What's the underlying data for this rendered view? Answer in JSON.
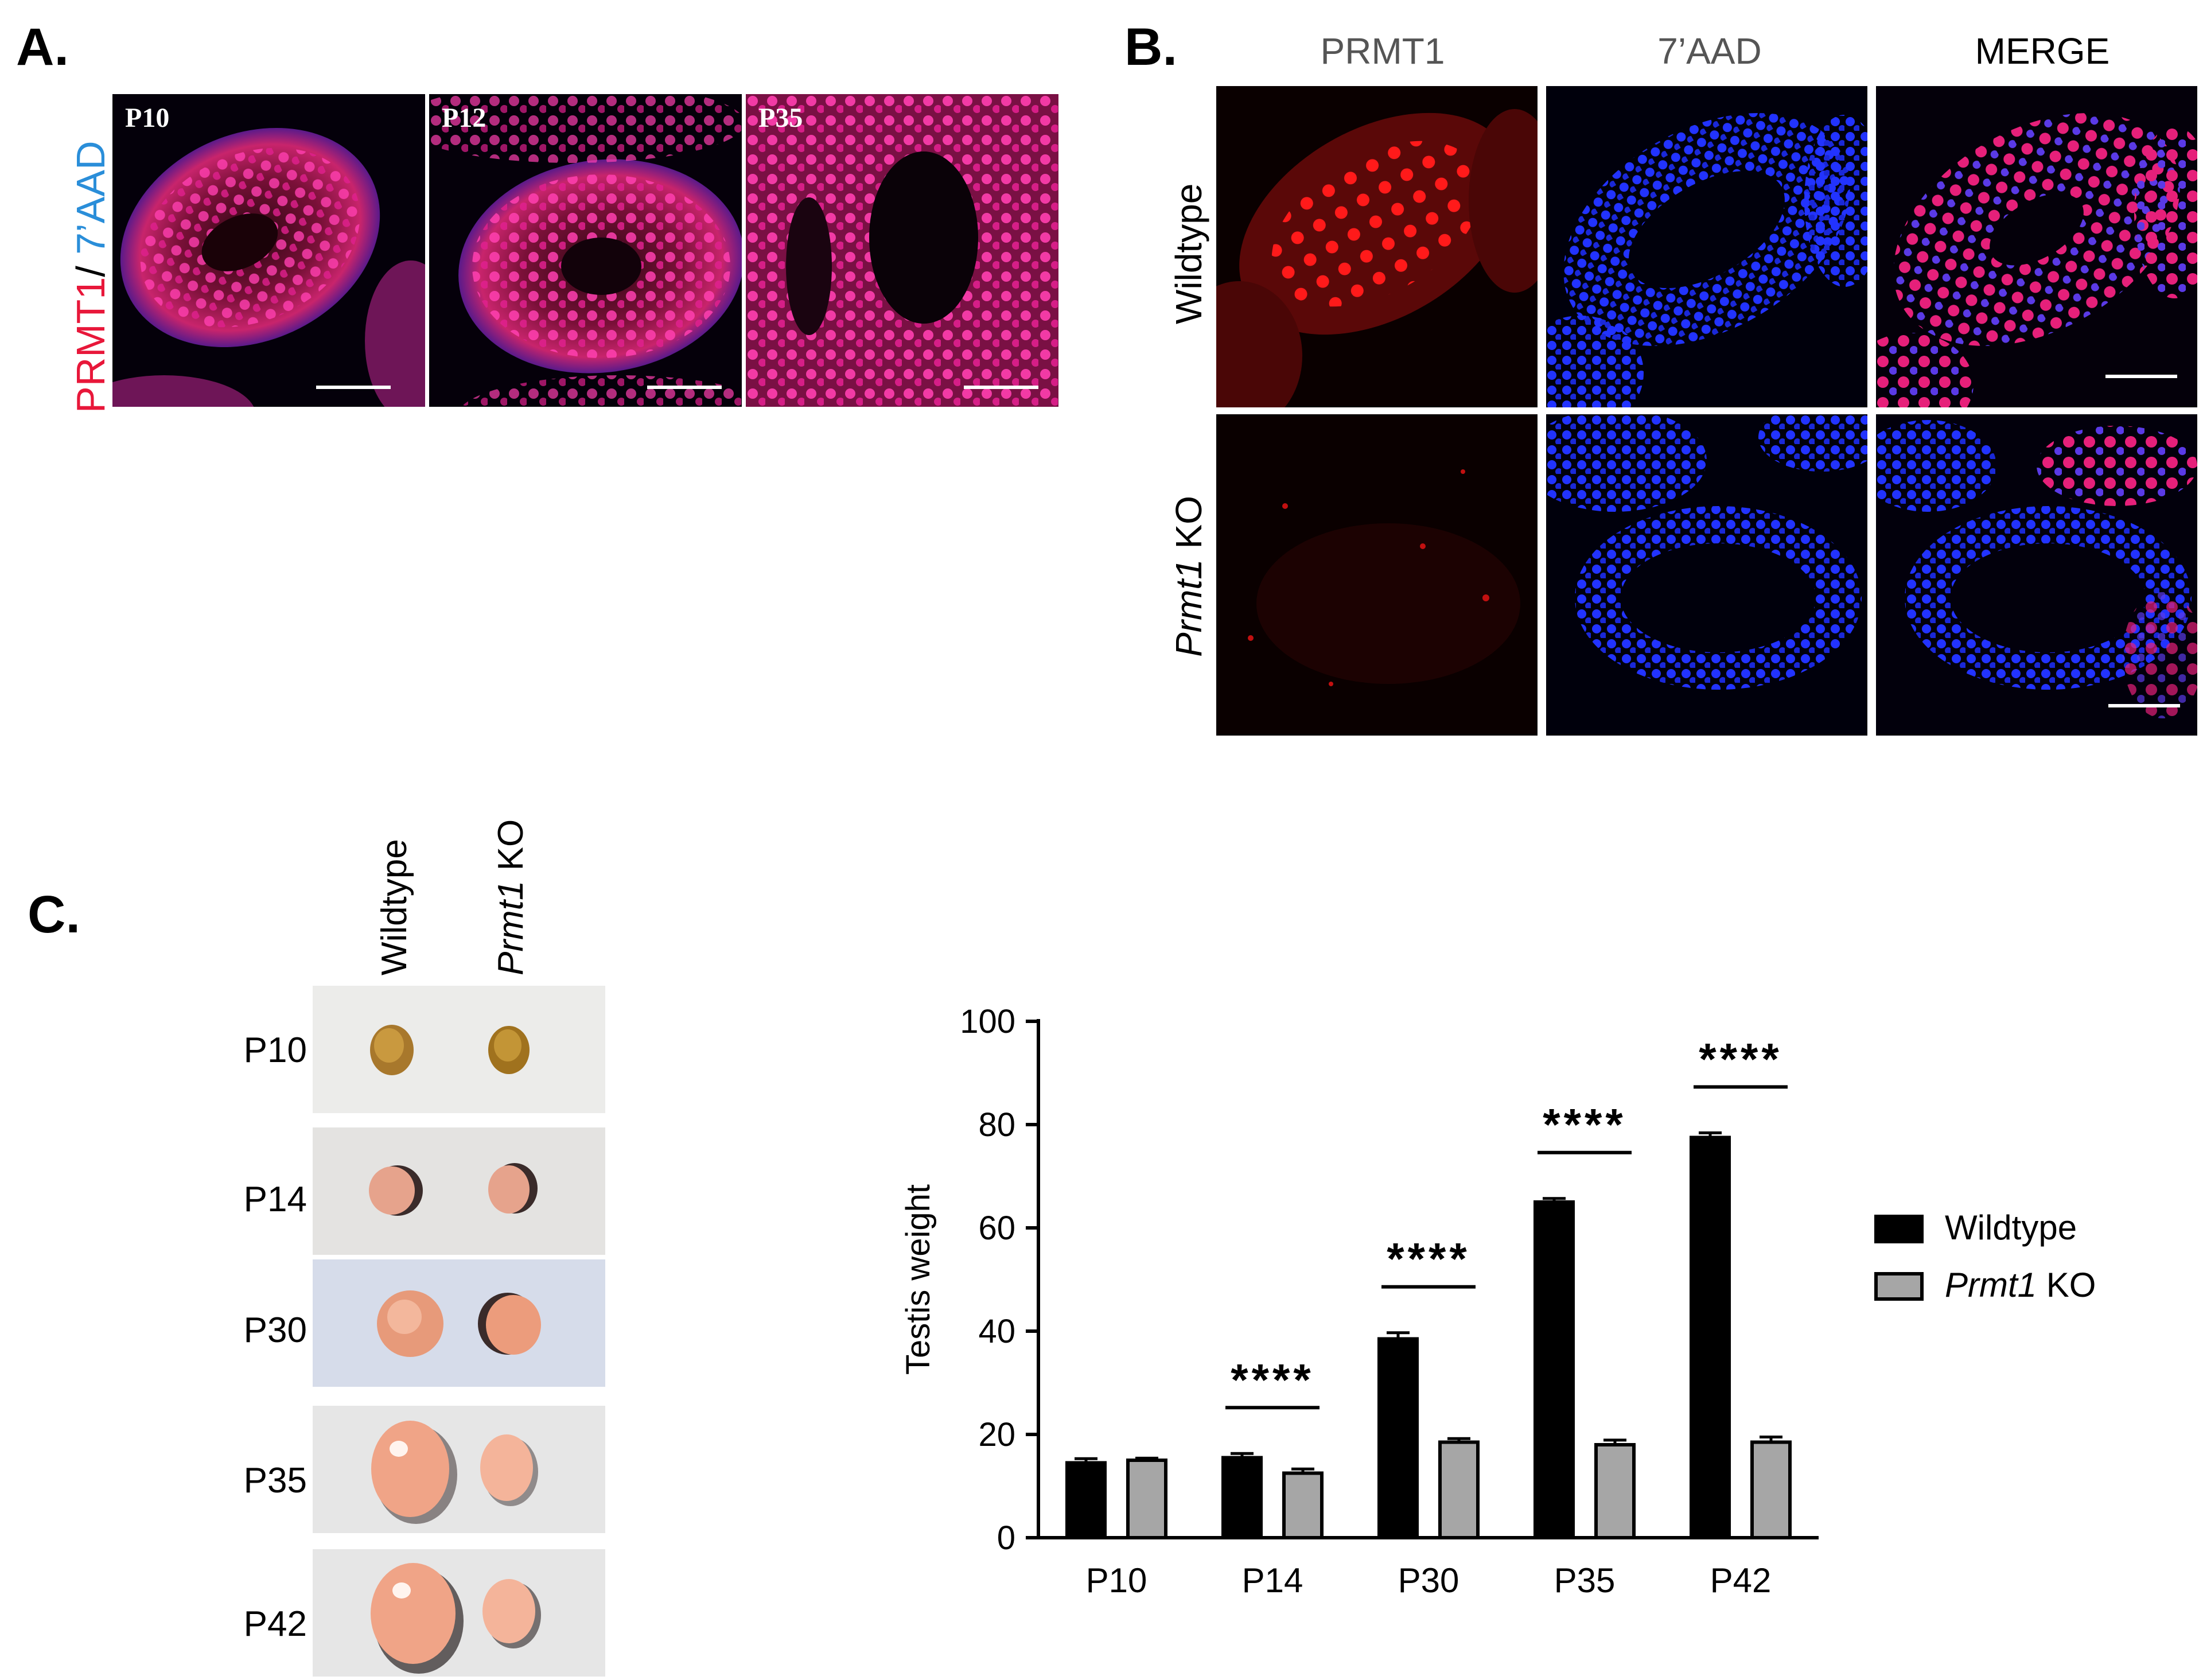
{
  "panel_a": {
    "letter": "A.",
    "stain_label_prmt1": "PRMT1",
    "stain_label_sep": "/",
    "stain_label_7aad": " 7’AAD",
    "images": [
      {
        "label": "P10"
      },
      {
        "label": "P12"
      },
      {
        "label": "P35"
      }
    ],
    "colors": {
      "prmt1": "#e8173a",
      "aad": "#2a8ed9"
    }
  },
  "panel_b": {
    "letter": "B.",
    "columns": [
      "PRMT1",
      "7’AAD",
      "MERGE"
    ],
    "rows": [
      {
        "label_italic": "",
        "label": "Wildtype"
      },
      {
        "label_italic": "Prmt1",
        "label": " KO"
      }
    ]
  },
  "panel_c": {
    "letter": "C.",
    "photo_columns": [
      {
        "label_italic": "",
        "label": "Wildtype"
      },
      {
        "label_italic": "Prmt1",
        "label": " KO"
      }
    ],
    "photo_rows": [
      "P10",
      "P14",
      "P30",
      "P35",
      "P42"
    ]
  },
  "chart_data": {
    "type": "bar",
    "categories": [
      "P10",
      "P14",
      "P30",
      "P35",
      "P42"
    ],
    "series": [
      {
        "name": "Wildtype",
        "values": [
          14.5,
          15.5,
          38.5,
          65,
          77.5
        ],
        "errors": [
          0.8,
          0.8,
          1.2,
          0.7,
          0.9
        ],
        "color": "#000000"
      },
      {
        "name": "Prmt1 KO",
        "name_italic": "Prmt1",
        "name_rest": " KO",
        "values": [
          15,
          12.5,
          18.5,
          18,
          18.5
        ],
        "errors": [
          0.4,
          0.8,
          0.7,
          0.9,
          1.0
        ],
        "color": "#a6a6a6"
      }
    ],
    "ylabel": "Testis weight",
    "ylim": [
      0,
      100
    ],
    "yticks": [
      0,
      20,
      40,
      60,
      80,
      100
    ],
    "significance": [
      {
        "category": "P14",
        "label": "****"
      },
      {
        "category": "P30",
        "label": "****"
      },
      {
        "category": "P35",
        "label": "****"
      },
      {
        "category": "P42",
        "label": "****"
      }
    ],
    "legend_position": "right"
  }
}
